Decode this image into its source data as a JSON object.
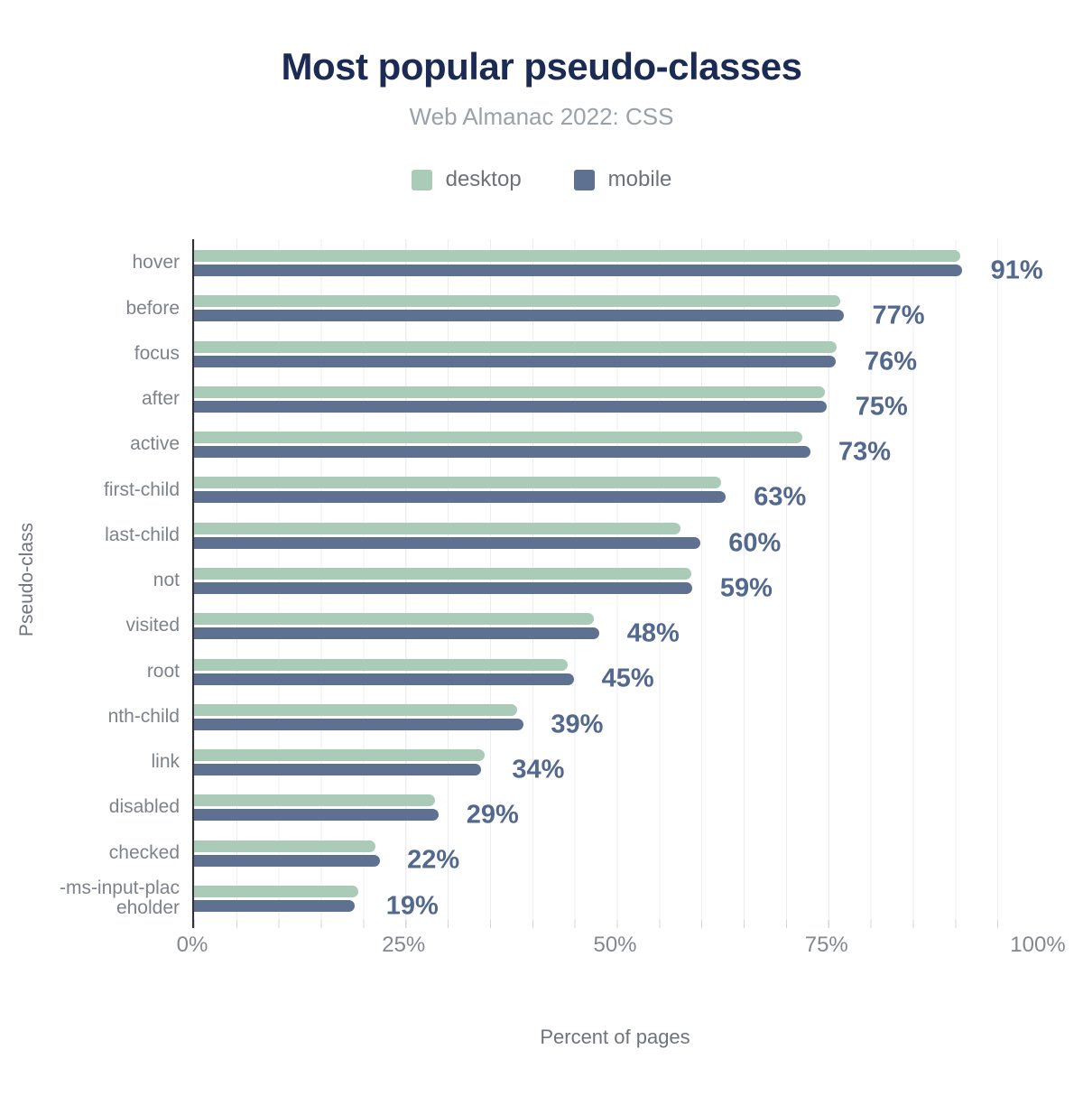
{
  "header": {
    "title": "Most popular pseudo-classes",
    "subtitle": "Web Almanac 2022: CSS"
  },
  "legend": [
    {
      "label": "desktop",
      "color": "#a9cbb7"
    },
    {
      "label": "mobile",
      "color": "#5f7190"
    }
  ],
  "chart_data": {
    "type": "bar",
    "orientation": "horizontal",
    "title": "Most popular pseudo-classes",
    "subtitle": "Web Almanac 2022: CSS",
    "xlabel": "Percent of pages",
    "ylabel": "Pseudo-class",
    "xlim": [
      0,
      100
    ],
    "x_ticks": [
      "0%",
      "25%",
      "50%",
      "75%",
      "100%"
    ],
    "grid_step_pct": 5,
    "legend_position": "top",
    "categories": [
      "hover",
      "before",
      "focus",
      "after",
      "active",
      "first-child",
      "last-child",
      "not",
      "visited",
      "root",
      "nth-child",
      "link",
      "disabled",
      "checked",
      "-ms-input-placeholder"
    ],
    "series": [
      {
        "name": "desktop",
        "color": "#a9cbb7",
        "values": [
          90.8,
          76.6,
          76.1,
          74.8,
          72.1,
          62.5,
          57.6,
          58.9,
          47.4,
          44.3,
          38.3,
          34.4,
          28.6,
          21.5,
          19.5
        ]
      },
      {
        "name": "mobile",
        "color": "#5f7190",
        "values": [
          91,
          77,
          76,
          75,
          73,
          63,
          60,
          59,
          48,
          45,
          39,
          34,
          29,
          22,
          19
        ]
      }
    ],
    "value_labels": [
      "91%",
      "77%",
      "76%",
      "75%",
      "73%",
      "63%",
      "60%",
      "59%",
      "48%",
      "45%",
      "39%",
      "34%",
      "29%",
      "22%",
      "19%"
    ]
  },
  "colors": {
    "title": "#1c2b54",
    "subtitle": "#9ba1a8",
    "value_label": "#53688e",
    "category_label": "#7d828b",
    "tick_label": "#83888f",
    "axis_title": "#6f747c",
    "axis_line": "#2e3238",
    "gridline": "#ededf1",
    "tick_stub": "#d4d4d9"
  }
}
